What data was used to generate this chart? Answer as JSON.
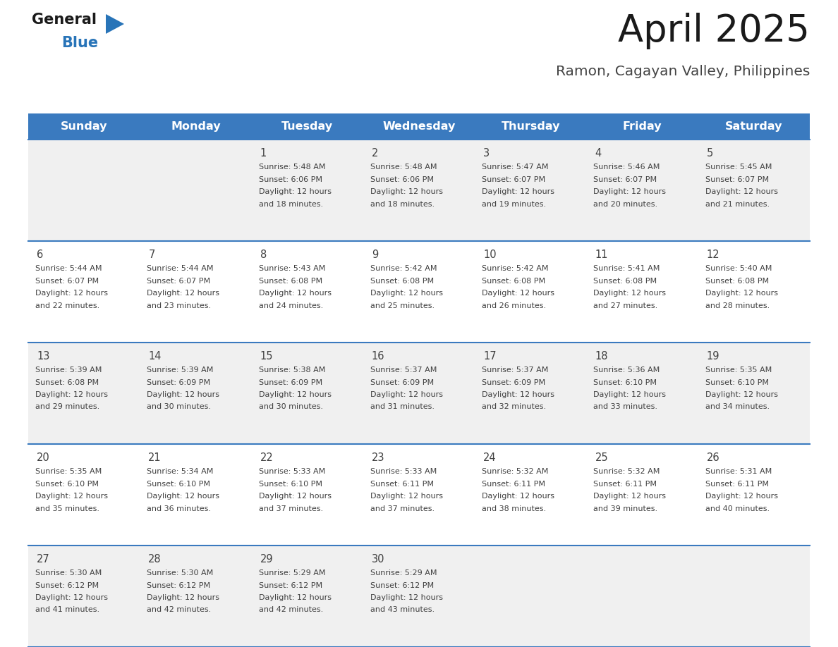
{
  "title": "April 2025",
  "subtitle": "Ramon, Cagayan Valley, Philippines",
  "days_of_week": [
    "Sunday",
    "Monday",
    "Tuesday",
    "Wednesday",
    "Thursday",
    "Friday",
    "Saturday"
  ],
  "header_bg_color": "#3a7abf",
  "header_text_color": "#ffffff",
  "cell_bg_even": "#f0f0f0",
  "cell_bg_odd": "#ffffff",
  "row_line_color": "#3a7abf",
  "text_color": "#404040",
  "title_color": "#1a1a1a",
  "subtitle_color": "#444444",
  "logo_general_color": "#1a1a1a",
  "logo_blue_color": "#2874b8",
  "weeks": [
    [
      {
        "day": null,
        "sunrise": null,
        "sunset": null,
        "daylight_min": null
      },
      {
        "day": null,
        "sunrise": null,
        "sunset": null,
        "daylight_min": null
      },
      {
        "day": 1,
        "sunrise": "5:48 AM",
        "sunset": "6:06 PM",
        "daylight_min": 18
      },
      {
        "day": 2,
        "sunrise": "5:48 AM",
        "sunset": "6:06 PM",
        "daylight_min": 18
      },
      {
        "day": 3,
        "sunrise": "5:47 AM",
        "sunset": "6:07 PM",
        "daylight_min": 19
      },
      {
        "day": 4,
        "sunrise": "5:46 AM",
        "sunset": "6:07 PM",
        "daylight_min": 20
      },
      {
        "day": 5,
        "sunrise": "5:45 AM",
        "sunset": "6:07 PM",
        "daylight_min": 21
      }
    ],
    [
      {
        "day": 6,
        "sunrise": "5:44 AM",
        "sunset": "6:07 PM",
        "daylight_min": 22
      },
      {
        "day": 7,
        "sunrise": "5:44 AM",
        "sunset": "6:07 PM",
        "daylight_min": 23
      },
      {
        "day": 8,
        "sunrise": "5:43 AM",
        "sunset": "6:08 PM",
        "daylight_min": 24
      },
      {
        "day": 9,
        "sunrise": "5:42 AM",
        "sunset": "6:08 PM",
        "daylight_min": 25
      },
      {
        "day": 10,
        "sunrise": "5:42 AM",
        "sunset": "6:08 PM",
        "daylight_min": 26
      },
      {
        "day": 11,
        "sunrise": "5:41 AM",
        "sunset": "6:08 PM",
        "daylight_min": 27
      },
      {
        "day": 12,
        "sunrise": "5:40 AM",
        "sunset": "6:08 PM",
        "daylight_min": 28
      }
    ],
    [
      {
        "day": 13,
        "sunrise": "5:39 AM",
        "sunset": "6:08 PM",
        "daylight_min": 29
      },
      {
        "day": 14,
        "sunrise": "5:39 AM",
        "sunset": "6:09 PM",
        "daylight_min": 30
      },
      {
        "day": 15,
        "sunrise": "5:38 AM",
        "sunset": "6:09 PM",
        "daylight_min": 30
      },
      {
        "day": 16,
        "sunrise": "5:37 AM",
        "sunset": "6:09 PM",
        "daylight_min": 31
      },
      {
        "day": 17,
        "sunrise": "5:37 AM",
        "sunset": "6:09 PM",
        "daylight_min": 32
      },
      {
        "day": 18,
        "sunrise": "5:36 AM",
        "sunset": "6:10 PM",
        "daylight_min": 33
      },
      {
        "day": 19,
        "sunrise": "5:35 AM",
        "sunset": "6:10 PM",
        "daylight_min": 34
      }
    ],
    [
      {
        "day": 20,
        "sunrise": "5:35 AM",
        "sunset": "6:10 PM",
        "daylight_min": 35
      },
      {
        "day": 21,
        "sunrise": "5:34 AM",
        "sunset": "6:10 PM",
        "daylight_min": 36
      },
      {
        "day": 22,
        "sunrise": "5:33 AM",
        "sunset": "6:10 PM",
        "daylight_min": 37
      },
      {
        "day": 23,
        "sunrise": "5:33 AM",
        "sunset": "6:11 PM",
        "daylight_min": 37
      },
      {
        "day": 24,
        "sunrise": "5:32 AM",
        "sunset": "6:11 PM",
        "daylight_min": 38
      },
      {
        "day": 25,
        "sunrise": "5:32 AM",
        "sunset": "6:11 PM",
        "daylight_min": 39
      },
      {
        "day": 26,
        "sunrise": "5:31 AM",
        "sunset": "6:11 PM",
        "daylight_min": 40
      }
    ],
    [
      {
        "day": 27,
        "sunrise": "5:30 AM",
        "sunset": "6:12 PM",
        "daylight_min": 41
      },
      {
        "day": 28,
        "sunrise": "5:30 AM",
        "sunset": "6:12 PM",
        "daylight_min": 42
      },
      {
        "day": 29,
        "sunrise": "5:29 AM",
        "sunset": "6:12 PM",
        "daylight_min": 42
      },
      {
        "day": 30,
        "sunrise": "5:29 AM",
        "sunset": "6:12 PM",
        "daylight_min": 43
      },
      {
        "day": null,
        "sunrise": null,
        "sunset": null,
        "daylight_min": null
      },
      {
        "day": null,
        "sunrise": null,
        "sunset": null,
        "daylight_min": null
      },
      {
        "day": null,
        "sunrise": null,
        "sunset": null,
        "daylight_min": null
      }
    ]
  ]
}
